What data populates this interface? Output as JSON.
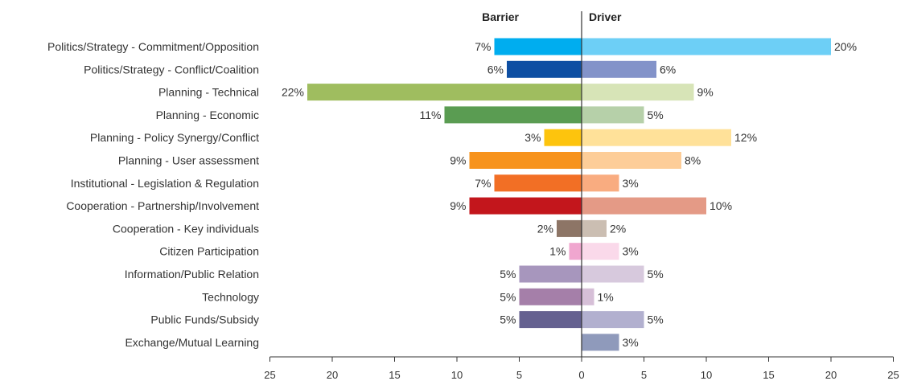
{
  "chart_data": {
    "type": "bar",
    "orientation": "horizontal-diverging",
    "headers": {
      "left": "Barrier",
      "right": "Driver"
    },
    "categories": [
      "Politics/Strategy - Commitment/Opposition",
      "Politics/Strategy - Conflict/Coalition",
      "Planning - Technical",
      "Planning - Economic",
      "Planning - Policy Synergy/Conflict",
      "Planning - User assessment",
      "Institutional - Legislation & Regulation",
      "Cooperation - Partnership/Involvement",
      "Cooperation - Key individuals",
      "Citizen Participation",
      "Information/Public Relation",
      "Technology",
      "Public Funds/Subsidy",
      "Exchange/Mutual Learning"
    ],
    "series": [
      {
        "side": "left",
        "values": [
          7,
          6,
          22,
          11,
          3,
          9,
          7,
          9,
          2,
          1,
          5,
          5,
          5,
          0
        ],
        "labels": [
          "7%",
          "6%",
          "22%",
          "11%",
          "3%",
          "9%",
          "7%",
          "9%",
          "2%",
          "1%",
          "5%",
          "5%",
          "5%",
          ""
        ],
        "colors": [
          "#00adef",
          "#0e4fa3",
          "#9fbd5f",
          "#5a9c52",
          "#fdc40d",
          "#f7931d",
          "#f26f25",
          "#c3161c",
          "#8d7566",
          "#f0a6cf",
          "#a796bd",
          "#a57fa9",
          "#656190",
          "#656190"
        ]
      },
      {
        "side": "right",
        "values": [
          20,
          6,
          9,
          5,
          12,
          8,
          3,
          10,
          2,
          3,
          5,
          1,
          5,
          3
        ],
        "labels": [
          "20%",
          "6%",
          "9%",
          "5%",
          "12%",
          "8%",
          "3%",
          "10%",
          "2%",
          "3%",
          "5%",
          "1%",
          "5%",
          "3%"
        ],
        "colors": [
          "#6dcff6",
          "#8393c9",
          "#d7e4b7",
          "#b6d0a9",
          "#ffe199",
          "#fdcd98",
          "#f9ac80",
          "#e49a86",
          "#cbbeb2",
          "#fad9ea",
          "#d7c9dd",
          "#d6bfd7",
          "#b2b0cf",
          "#8f9abb"
        ]
      }
    ],
    "xlim": [
      -25,
      25
    ],
    "xticks": [
      25,
      20,
      15,
      10,
      5,
      0,
      5,
      10,
      15,
      20,
      25
    ],
    "grid": false,
    "legend": "none"
  }
}
